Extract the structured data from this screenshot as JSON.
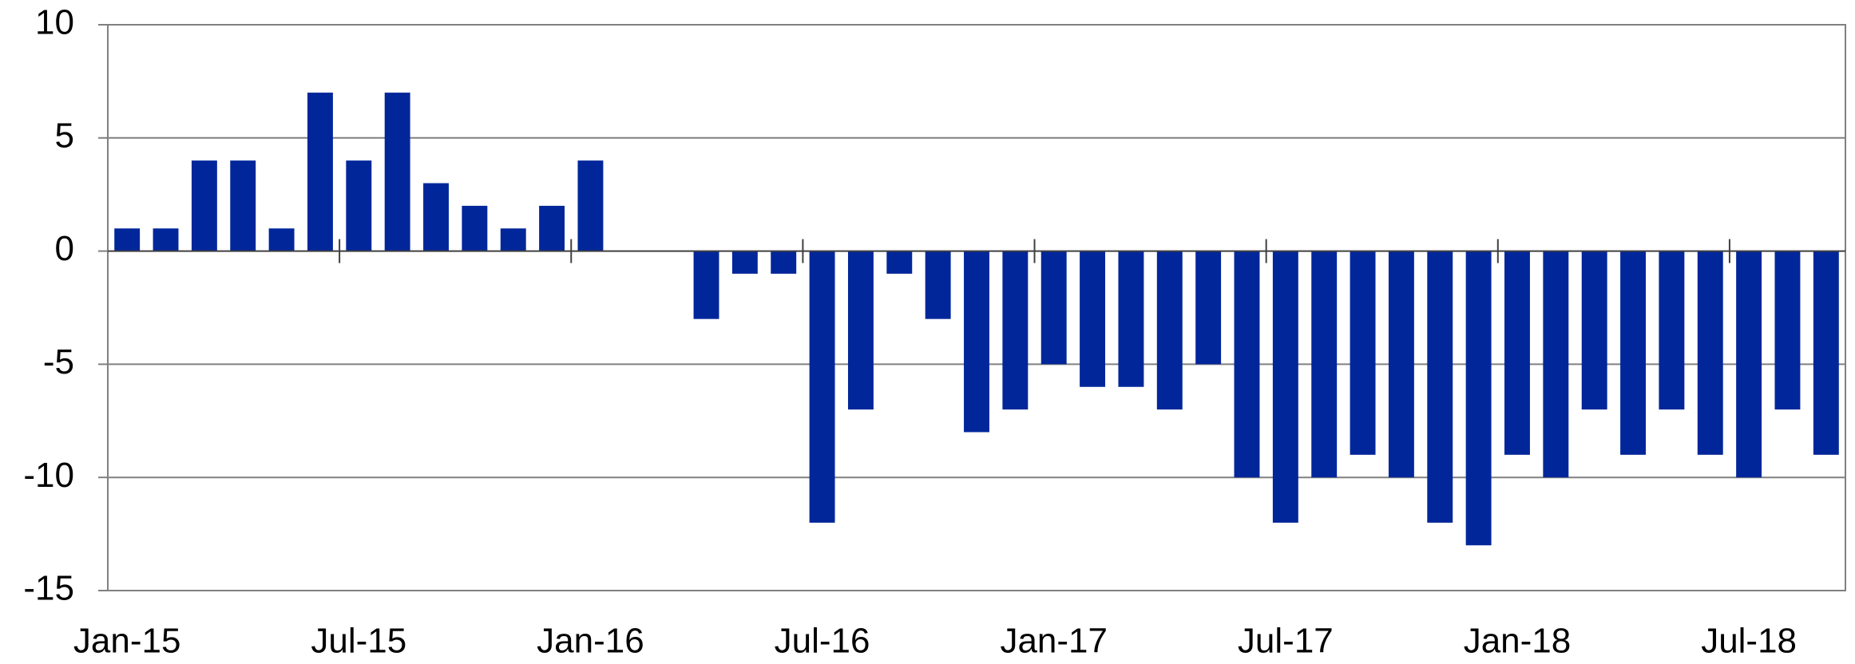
{
  "chart_data": {
    "type": "bar",
    "categories": [
      "Jan-15",
      null,
      null,
      null,
      null,
      null,
      "Jul-15",
      null,
      null,
      null,
      null,
      null,
      "Jan-16",
      null,
      null,
      null,
      null,
      null,
      "Jul-16",
      null,
      null,
      null,
      null,
      null,
      "Jan-17",
      null,
      null,
      null,
      null,
      null,
      "Jul-17",
      null,
      null,
      null,
      null,
      null,
      "Jan-18",
      null,
      null,
      null,
      null,
      null,
      "Jul-18",
      null,
      null
    ],
    "values": [
      1,
      1,
      4,
      4,
      1,
      7,
      4,
      7,
      3,
      2,
      1,
      2,
      4,
      0,
      0,
      -3,
      -1,
      -1,
      -12,
      -7,
      -1,
      -3,
      -8,
      -7,
      -5,
      -6,
      -6,
      -7,
      -5,
      -10,
      -12,
      -10,
      -9,
      -10,
      -12,
      -13,
      -9,
      -10,
      -7,
      -9,
      -7,
      -9,
      -10,
      -7,
      -9
    ],
    "color": "#00269a",
    "ylim": [
      -15,
      10
    ],
    "yticks": [
      -15,
      -10,
      -5,
      0,
      5,
      10
    ],
    "grid": true
  }
}
